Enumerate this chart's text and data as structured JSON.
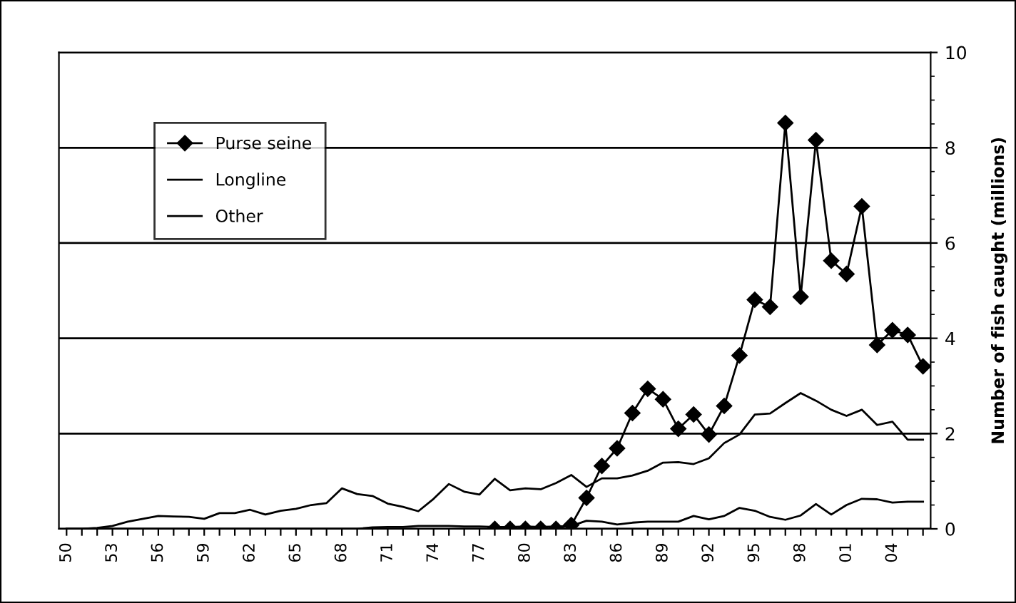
{
  "chart_data": {
    "type": "line",
    "ylabel": "Number of fish caught (millions)",
    "categories": [
      "50",
      null,
      null,
      "53",
      null,
      null,
      "56",
      null,
      null,
      "59",
      null,
      null,
      "62",
      null,
      null,
      "65",
      null,
      null,
      "68",
      null,
      null,
      "71",
      null,
      null,
      "74",
      null,
      null,
      "77",
      null,
      null,
      "80",
      null,
      null,
      "83",
      null,
      null,
      "86",
      null,
      null,
      "89",
      null,
      null,
      "92",
      null,
      null,
      "95",
      null,
      null,
      "98",
      null,
      null,
      "01",
      null,
      null,
      "04",
      null,
      null
    ],
    "series": [
      {
        "name": "Purse seine",
        "color": "#000000",
        "marker": "diamond",
        "values": [
          null,
          null,
          null,
          null,
          null,
          null,
          null,
          null,
          null,
          null,
          null,
          null,
          null,
          null,
          null,
          null,
          null,
          null,
          null,
          null,
          null,
          null,
          null,
          null,
          null,
          null,
          null,
          null,
          0,
          0,
          0,
          0,
          0,
          0.08,
          0.65,
          1.32,
          1.69,
          2.43,
          2.94,
          2.72,
          2.1,
          2.4,
          1.98,
          2.58,
          3.64,
          4.81,
          4.66,
          8.52,
          4.87,
          8.16,
          5.63,
          5.35,
          6.77,
          3.86,
          4.17,
          4.07,
          3.41
        ]
      },
      {
        "name": "Longline",
        "color": "#000000",
        "marker": "none",
        "values": [
          0,
          0,
          0.02,
          0.06,
          0.15,
          0.21,
          0.27,
          0.26,
          0.25,
          0.21,
          0.33,
          0.33,
          0.4,
          0.3,
          0.38,
          0.42,
          0.5,
          0.54,
          0.85,
          0.73,
          0.69,
          0.53,
          0.46,
          0.37,
          0.63,
          0.94,
          0.78,
          0.72,
          1.05,
          0.81,
          0.85,
          0.83,
          0.96,
          1.13,
          0.88,
          1.06,
          1.06,
          1.12,
          1.22,
          1.39,
          1.4,
          1.36,
          1.48,
          1.8,
          1.98,
          2.4,
          2.42,
          2.64,
          2.85,
          2.69,
          2.5,
          2.37,
          2.5,
          2.18,
          2.25,
          1.87,
          1.87
        ]
      },
      {
        "name": "Other",
        "color": "#000000",
        "marker": "none",
        "values": [
          0,
          0,
          0,
          0,
          0,
          0,
          0,
          0,
          0,
          0,
          0,
          0,
          0,
          0,
          0,
          0,
          0,
          0,
          0,
          0,
          0.03,
          0.04,
          0.04,
          0.06,
          0.06,
          0.06,
          0.05,
          0.05,
          0.04,
          0.04,
          0.05,
          0.04,
          0.05,
          0.06,
          0.17,
          0.15,
          0.09,
          0.13,
          0.15,
          0.15,
          0.15,
          0.27,
          0.2,
          0.27,
          0.44,
          0.38,
          0.25,
          0.19,
          0.28,
          0.52,
          0.3,
          0.5,
          0.63,
          0.62,
          0.55,
          0.57,
          0.57
        ]
      }
    ],
    "ylim": [
      0,
      10
    ],
    "yticks": [
      0,
      2,
      4,
      6,
      8,
      10
    ],
    "grid": "y",
    "legend": "top left"
  }
}
